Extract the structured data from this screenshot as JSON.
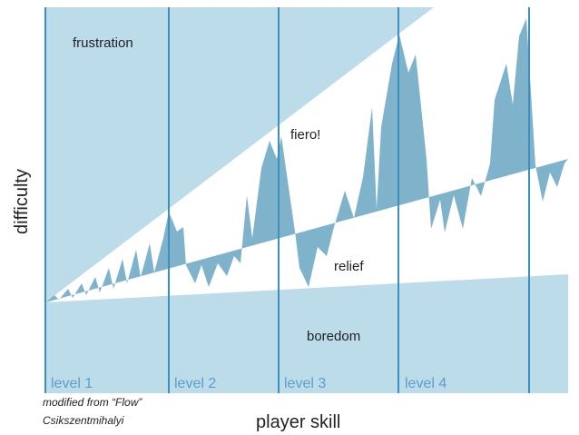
{
  "zones": {
    "frustration": "frustration",
    "fiero": "fiero!",
    "relief": "relief",
    "boredom": "boredom"
  },
  "levels": [
    "level 1",
    "level 2",
    "level 3",
    "level 4"
  ],
  "y_axis_label": "difficulty",
  "x_axis_label": "player skill",
  "credit": [
    "modified from “Flow”",
    "Csikszentmihalyi"
  ]
}
